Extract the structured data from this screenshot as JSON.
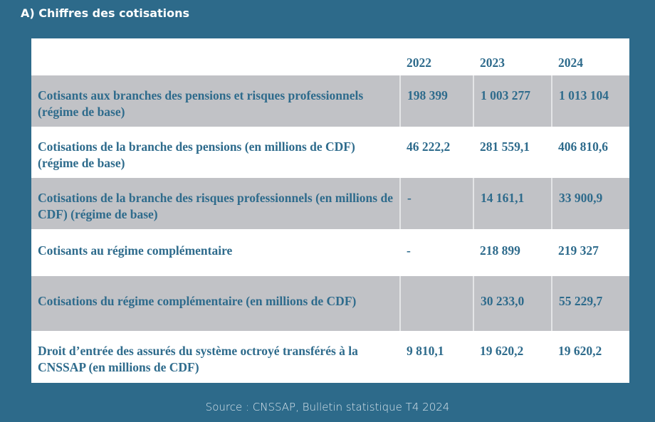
{
  "title": "A) Chiffres des cotisations",
  "table": {
    "headers": [
      "",
      "2022",
      "2023",
      "2024"
    ],
    "rows": [
      {
        "label": "Cotisants aux branches des pensions et risques professionnels (régime de base)",
        "v2022": "198 399",
        "v2023": "1 003 277",
        "v2024": "1 013 104"
      },
      {
        "label": "Cotisations de la branche des pensions (en millions de CDF) (régime de base)",
        "v2022": "46 222,2",
        "v2023": "281 559,1",
        "v2024": "406 810,6"
      },
      {
        "label": "Cotisations de la branche des risques professionnels (en millions de CDF) (régime de base)",
        "v2022": "-",
        "v2023": "14 161,1",
        "v2024": "33 900,9"
      },
      {
        "label": "Cotisants au régime complémentaire",
        "v2022": "-",
        "v2023": "218 899",
        "v2024": "219 327"
      },
      {
        "label": "Cotisations du régime complémentaire (en millions de CDF)",
        "v2022": "",
        "v2023": "30 233,0",
        "v2024": "55 229,7"
      },
      {
        "label": "Droit d’entrée des assurés du système octroyé transférés à la CNSSAP (en millions de CDF)",
        "v2022": "9 810,1",
        "v2023": "19 620,2",
        "v2024": "19 620,2"
      }
    ]
  },
  "source": "Source : CNSSAP, Bulletin statistique T4 2024"
}
